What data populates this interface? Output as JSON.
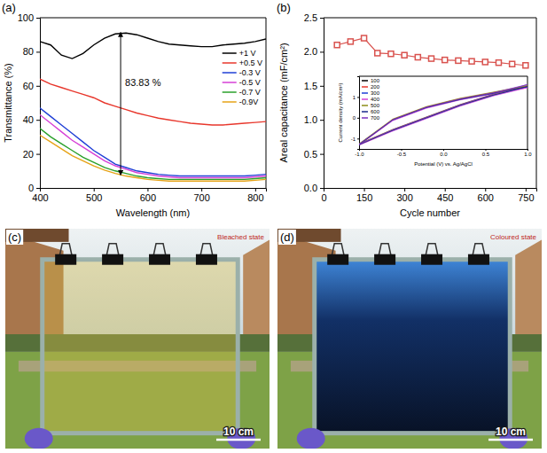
{
  "chart_data": [
    {
      "type": "line",
      "title": "(a)",
      "x_label": "Wavelength (nm)",
      "y_label": "Transmittance (%)",
      "x": [
        400,
        420,
        440,
        460,
        480,
        500,
        520,
        540,
        560,
        580,
        600,
        620,
        640,
        660,
        680,
        700,
        720,
        740,
        760,
        780,
        800,
        820
      ],
      "series": [
        {
          "name": "+1 V",
          "color": "#000000",
          "values": [
            86,
            84,
            78,
            76,
            79,
            84,
            88,
            90.5,
            91,
            90,
            88,
            86,
            84.5,
            84,
            83.5,
            83,
            83,
            84,
            84.5,
            85,
            86,
            87.5
          ]
        },
        {
          "name": "+0.5 V",
          "color": "#e8372c",
          "values": [
            64,
            61,
            59,
            57,
            55,
            53,
            50,
            48,
            46,
            44,
            42.5,
            41,
            40,
            39,
            38,
            37.5,
            37,
            37,
            37.5,
            38,
            38.5,
            39
          ]
        },
        {
          "name": "-0.3 V",
          "color": "#1f3fd6",
          "values": [
            47,
            42,
            37,
            32,
            27,
            22,
            18,
            14,
            12,
            10,
            9,
            8,
            7.5,
            7,
            7,
            7,
            7,
            7,
            7,
            7,
            7.5,
            8
          ]
        },
        {
          "name": "-0.5 V",
          "color": "#d63fd6",
          "values": [
            43,
            38,
            33,
            28,
            24,
            20,
            16,
            13,
            11,
            9,
            8,
            7,
            6.5,
            6,
            6,
            6,
            6,
            6,
            6,
            6,
            6.5,
            7
          ]
        },
        {
          "name": "-0.7 V",
          "color": "#2aa02a",
          "values": [
            35,
            30,
            26,
            22,
            18,
            15,
            12,
            10,
            8.5,
            7,
            6,
            5.5,
            5,
            5,
            5,
            5,
            5,
            5,
            5,
            5,
            5.5,
            6
          ]
        },
        {
          "name": "-0.9V",
          "color": "#e6a317",
          "values": [
            31,
            27,
            23,
            19,
            16,
            13,
            10.5,
            8.5,
            7,
            6,
            5,
            4.5,
            4,
            4,
            4,
            4,
            4,
            4,
            4,
            4,
            4.5,
            5
          ]
        }
      ],
      "xlim": [
        400,
        820
      ],
      "xticks": [
        400,
        500,
        600,
        700,
        800
      ],
      "ylim": [
        0,
        100
      ],
      "yticks": [
        0,
        20,
        40,
        60,
        80,
        100
      ],
      "legend": "upper right",
      "annotations": [
        {
          "text": "83.83 %",
          "x": 550,
          "y_from": 7.6,
          "y_to": 91.43
        }
      ]
    },
    {
      "type": "line",
      "title": "(b)",
      "x_label": "Cycle number",
      "y_label": "Areal capacitance (mF/cm²)",
      "x": [
        50,
        100,
        150,
        200,
        250,
        300,
        350,
        400,
        450,
        500,
        550,
        600,
        650,
        700,
        750
      ],
      "values": [
        2.1,
        2.15,
        2.2,
        1.98,
        1.97,
        1.95,
        1.92,
        1.9,
        1.88,
        1.87,
        1.86,
        1.85,
        1.84,
        1.82,
        1.8
      ],
      "color": "#d9534f",
      "marker": "square",
      "xlim": [
        0,
        790
      ],
      "xticks": [
        0,
        150,
        300,
        450,
        600,
        750
      ],
      "ylim": [
        0,
        2.5
      ],
      "yticks": [
        {
          "value": 0,
          "label": "0.0"
        },
        0.5,
        {
          "value": 1,
          "label": "1.0"
        },
        1.5,
        {
          "value": 2,
          "label": "2.0"
        },
        2.5
      ]
    },
    {
      "type": "line",
      "x_label": "Potential (V) vs. Ag/AgCl",
      "y_label": "Current density (mA/cm²)",
      "x": [
        -1,
        -0.6,
        -0.2,
        0.2,
        0.6,
        1,
        0.6,
        0.2,
        -0.2,
        -0.6,
        -1
      ],
      "series": [
        {
          "name": "100",
          "color": "#000000",
          "values": [
            -1.3,
            -0.1,
            0.5,
            0.9,
            1.2,
            1.5,
            1.1,
            0.6,
            0,
            -0.6,
            -1.3
          ]
        },
        {
          "name": "200",
          "color": "#e8372c",
          "values": [
            -1.28,
            -0.08,
            0.52,
            0.92,
            1.22,
            1.52,
            1.12,
            0.62,
            0.02,
            -0.58,
            -1.28
          ]
        },
        {
          "name": "300",
          "color": "#1f3fd6",
          "values": [
            -1.26,
            -0.12,
            0.48,
            0.88,
            1.18,
            1.48,
            1.08,
            0.58,
            -0.02,
            -0.62,
            -1.26
          ]
        },
        {
          "name": "400",
          "color": "#d63fd6",
          "values": [
            -1.32,
            -0.14,
            0.46,
            0.86,
            1.16,
            1.45,
            1.06,
            0.56,
            -0.04,
            -0.64,
            -1.32
          ]
        },
        {
          "name": "500",
          "color": "#8c8c1a",
          "values": [
            -1.25,
            -0.06,
            0.54,
            0.94,
            1.24,
            1.55,
            1.14,
            0.64,
            0.04,
            -0.56,
            -1.25
          ]
        },
        {
          "name": "600",
          "color": "#1a2a8c",
          "values": [
            -1.3,
            -0.1,
            0.5,
            0.88,
            1.18,
            1.5,
            1.1,
            0.6,
            0,
            -0.6,
            -1.3
          ]
        },
        {
          "name": "700",
          "color": "#7b2fbf",
          "values": [
            -1.27,
            -0.09,
            0.51,
            0.91,
            1.21,
            1.6,
            1.15,
            0.63,
            0.03,
            -0.57,
            -1.27
          ]
        }
      ],
      "xlim": [
        -1,
        1
      ],
      "xticks": [
        {
          "value": -1,
          "label": "-1.0"
        },
        -0.5,
        {
          "value": 0,
          "label": "0.0"
        },
        0.5,
        {
          "value": 1,
          "label": "1.0"
        }
      ],
      "ylim": [
        -1.5,
        2
      ],
      "yticks": [
        -1,
        0,
        1
      ],
      "legend": "upper left"
    }
  ],
  "photos": [
    {
      "title": "(c)",
      "caption": "Bleached state",
      "scale_bar": "10 cm"
    },
    {
      "title": "(d)",
      "caption": "Coloured state",
      "scale_bar": "10 cm"
    }
  ]
}
